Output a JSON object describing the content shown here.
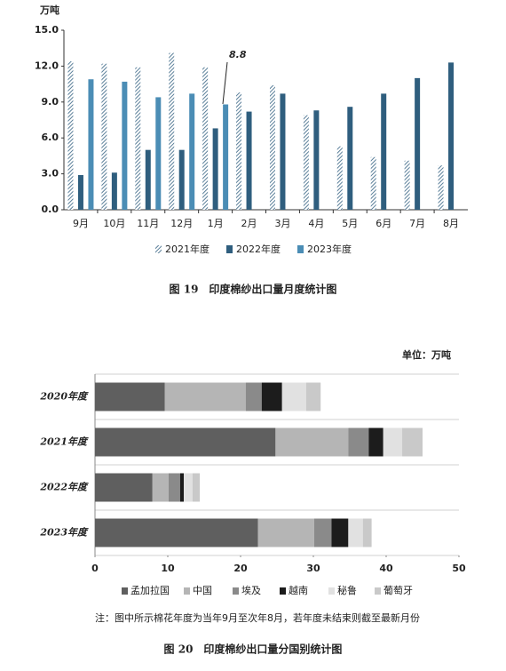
{
  "chart_data": [
    {
      "type": "bar",
      "y_label": "万吨",
      "categories": [
        "9月",
        "10月",
        "11月",
        "12月",
        "1月",
        "2月",
        "3月",
        "4月",
        "5月",
        "6月",
        "7月",
        "8月"
      ],
      "series": [
        {
          "name": "2021年度",
          "color": "#5a7f99",
          "hatch": true,
          "values": [
            12.4,
            12.2,
            11.9,
            13.1,
            11.9,
            9.8,
            10.4,
            7.9,
            5.3,
            4.4,
            4.1,
            3.7
          ]
        },
        {
          "name": "2022年度",
          "color": "#2f5e7e",
          "values": [
            2.9,
            3.1,
            5.0,
            5.0,
            6.8,
            8.2,
            9.7,
            8.3,
            8.6,
            9.7,
            11.0,
            12.3
          ]
        },
        {
          "name": "2023年度",
          "color": "#4b8db5",
          "values": [
            10.9,
            10.7,
            9.4,
            9.7,
            8.8,
            null,
            null,
            null,
            null,
            null,
            null,
            null
          ]
        }
      ],
      "annotation": "8.8",
      "ylim": [
        0,
        15
      ],
      "yticks": [
        {
          "value": 0,
          "label": "0.0"
        },
        {
          "value": 3,
          "label": "3.0"
        },
        {
          "value": 6,
          "label": "6.0"
        },
        {
          "value": 9,
          "label": "9.0"
        },
        {
          "value": 12,
          "label": "12.0"
        },
        {
          "value": 15,
          "label": "15.0"
        }
      ],
      "caption": "图 19　印度棉纱出口量月度统计图"
    },
    {
      "type": "stackedbar",
      "unit": "单位：万吨",
      "categories": [
        "2020年度",
        "2021年度",
        "2022年度",
        "2023年度"
      ],
      "series": [
        {
          "name": "孟加拉国",
          "color": "#5f5f5f",
          "values": [
            9.6,
            24.8,
            7.9,
            22.4
          ]
        },
        {
          "name": "中国",
          "color": "#b5b5b5",
          "values": [
            11.1,
            10.0,
            2.2,
            7.7
          ]
        },
        {
          "name": "埃及",
          "color": "#8a8a8a",
          "values": [
            2.2,
            2.8,
            1.6,
            2.4
          ]
        },
        {
          "name": "越南",
          "color": "#1c1c1c",
          "values": [
            2.8,
            2.0,
            0.5,
            2.3
          ]
        },
        {
          "name": "秘鲁",
          "color": "#e1e1e1",
          "values": [
            3.3,
            2.6,
            1.2,
            2.0
          ]
        },
        {
          "name": "葡萄牙",
          "color": "#c9c9c9",
          "values": [
            2.0,
            2.8,
            1.0,
            1.2
          ]
        }
      ],
      "xlim": [
        0,
        50
      ],
      "xticks": [
        0,
        10,
        20,
        30,
        40,
        50
      ],
      "grid": true,
      "note": "注：图中所示棉花年度为当年9月至次年8月，若年度未结束则截至最新月份",
      "caption": "图 20　印度棉纱出口量分国别统计图"
    }
  ]
}
